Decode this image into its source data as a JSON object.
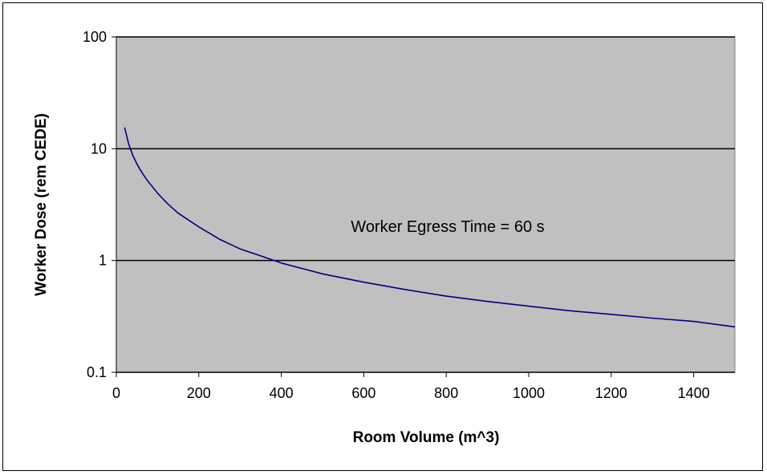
{
  "chart_data": {
    "type": "line",
    "title": "",
    "xlabel": "Room Volume (m^3)",
    "ylabel": "Worker Dose (rem CEDE)",
    "xlim": [
      0,
      1500
    ],
    "ylim": [
      0.1,
      100
    ],
    "y_scale": "log",
    "x_ticks": [
      0,
      200,
      400,
      600,
      800,
      1000,
      1200,
      1400
    ],
    "x_tick_labels": [
      "0",
      "200",
      "400",
      "600",
      "800",
      "1000",
      "1200",
      "1400"
    ],
    "y_ticks": [
      0.1,
      1,
      10,
      100
    ],
    "y_tick_labels": [
      "0.1",
      "1",
      "10",
      "100"
    ],
    "grid": "horizontal major gridlines",
    "legend": "none",
    "annotation": "Worker Egress Time = 60 s",
    "colors": {
      "plot_background": "#c0c0c0",
      "line": "#000080",
      "gridline": "#000000"
    },
    "series": [
      {
        "x": [
          20,
          30,
          40,
          50,
          60,
          75,
          100,
          125,
          150,
          200,
          250,
          300,
          350,
          400,
          500,
          600,
          700,
          800,
          900,
          1000,
          1100,
          1200,
          1300,
          1400,
          1500
        ],
        "y": [
          15.5,
          11.0,
          8.7,
          7.3,
          6.3,
          5.2,
          4.0,
          3.2,
          2.65,
          2.0,
          1.55,
          1.27,
          1.1,
          0.95,
          0.76,
          0.64,
          0.55,
          0.48,
          0.43,
          0.39,
          0.355,
          0.33,
          0.305,
          0.285,
          0.255
        ]
      }
    ]
  }
}
